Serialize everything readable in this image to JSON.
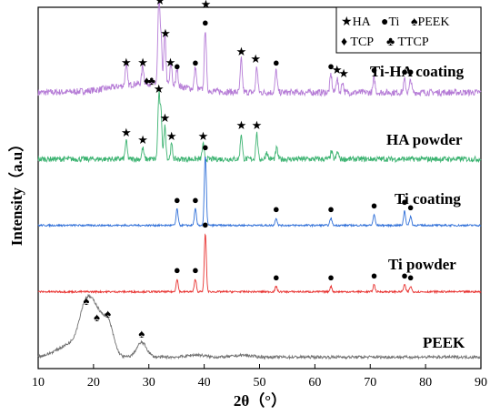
{
  "chart_data": {
    "type": "line",
    "xlabel": "2θ（°）",
    "ylabel": "Intensity（a.u）",
    "xlim": [
      10,
      90
    ],
    "x_ticks": [
      10,
      20,
      30,
      40,
      50,
      60,
      70,
      80,
      90
    ],
    "y_ticks": false,
    "grid": false,
    "legend": {
      "placement": "top-right",
      "entries": [
        {
          "symbol": "★",
          "label": "HA"
        },
        {
          "symbol": "●",
          "label": "Ti"
        },
        {
          "symbol": "♠",
          "label": "PEEK"
        },
        {
          "symbol": "♦",
          "label": "TCP"
        },
        {
          "symbol": "♣",
          "label": "TTCP"
        }
      ]
    },
    "series": [
      {
        "name": "Ti-HA coating",
        "color": "#b57bd6",
        "baseline": 1.0,
        "noise": 0.18,
        "peaks": [
          {
            "x": 25.9,
            "h": 0.6
          },
          {
            "x": 28.9,
            "h": 0.5
          },
          {
            "x": 31.8,
            "h": 2.3
          },
          {
            "x": 32.2,
            "h": 1.2
          },
          {
            "x": 32.9,
            "h": 1.4
          },
          {
            "x": 34.0,
            "h": 0.6
          },
          {
            "x": 35.1,
            "h": 0.5
          },
          {
            "x": 38.4,
            "h": 0.6
          },
          {
            "x": 40.2,
            "h": 1.7
          },
          {
            "x": 46.7,
            "h": 0.9
          },
          {
            "x": 49.5,
            "h": 0.7
          },
          {
            "x": 53.0,
            "h": 0.6
          },
          {
            "x": 62.9,
            "h": 0.5
          },
          {
            "x": 64.0,
            "h": 0.4
          },
          {
            "x": 65.0,
            "h": 0.3
          },
          {
            "x": 70.7,
            "h": 0.4
          },
          {
            "x": 76.2,
            "h": 0.35
          },
          {
            "x": 77.3,
            "h": 0.35
          }
        ],
        "markers": [
          {
            "x": 25.9,
            "h": 0.6,
            "s": "★"
          },
          {
            "x": 28.9,
            "h": 0.6,
            "s": "★"
          },
          {
            "x": 29.6,
            "h": 0.1,
            "s": "♦"
          },
          {
            "x": 30.5,
            "h": 0.1,
            "s": "♣"
          },
          {
            "x": 32.0,
            "h": 2.3,
            "s": "★"
          },
          {
            "x": 33.0,
            "h": 1.4,
            "s": "★"
          },
          {
            "x": 33.9,
            "h": 0.6,
            "s": "★"
          },
          {
            "x": 35.1,
            "h": 0.5,
            "s": "●"
          },
          {
            "x": 38.4,
            "h": 0.6,
            "s": "●"
          },
          {
            "x": 40.2,
            "h": 1.7,
            "s": "●"
          },
          {
            "x": 40.3,
            "h": 2.2,
            "s": "★"
          },
          {
            "x": 46.7,
            "h": 0.9,
            "s": "★"
          },
          {
            "x": 49.3,
            "h": 0.7,
            "s": "★"
          },
          {
            "x": 53.0,
            "h": 0.6,
            "s": "●"
          },
          {
            "x": 62.9,
            "h": 0.5,
            "s": "●"
          },
          {
            "x": 64.0,
            "h": 0.4,
            "s": "★"
          },
          {
            "x": 65.2,
            "h": 0.3,
            "s": "★"
          },
          {
            "x": 70.7,
            "h": 0.4,
            "s": "●"
          },
          {
            "x": 76.2,
            "h": 0.35,
            "s": "●"
          },
          {
            "x": 77.3,
            "h": 0.35,
            "s": "●"
          }
        ]
      },
      {
        "name": "HA powder",
        "color": "#3cb371",
        "baseline": 0.15,
        "noise": 0.15,
        "peaks": [
          {
            "x": 25.9,
            "h": 0.5
          },
          {
            "x": 28.9,
            "h": 0.3
          },
          {
            "x": 31.8,
            "h": 1.7
          },
          {
            "x": 32.2,
            "h": 1.2
          },
          {
            "x": 32.9,
            "h": 0.9
          },
          {
            "x": 34.1,
            "h": 0.4
          },
          {
            "x": 39.8,
            "h": 0.4
          },
          {
            "x": 46.7,
            "h": 0.7
          },
          {
            "x": 49.5,
            "h": 0.7
          },
          {
            "x": 51.3,
            "h": 0.2
          },
          {
            "x": 53.1,
            "h": 0.3
          },
          {
            "x": 63.0,
            "h": 0.2
          },
          {
            "x": 64.1,
            "h": 0.2
          }
        ],
        "markers": [
          {
            "x": 25.9,
            "h": 0.5,
            "s": "★"
          },
          {
            "x": 28.9,
            "h": 0.3,
            "s": "★"
          },
          {
            "x": 31.8,
            "h": 1.7,
            "s": "★"
          },
          {
            "x": 32.9,
            "h": 0.9,
            "s": "★"
          },
          {
            "x": 34.1,
            "h": 0.4,
            "s": "★"
          },
          {
            "x": 39.8,
            "h": 0.4,
            "s": "★"
          },
          {
            "x": 46.7,
            "h": 0.7,
            "s": "★"
          },
          {
            "x": 49.5,
            "h": 0.7,
            "s": "★"
          }
        ]
      },
      {
        "name": "Ti coating",
        "color": "#2f6fd8",
        "baseline": 0.05,
        "noise": 0.05,
        "peaks": [
          {
            "x": 35.1,
            "h": 0.45
          },
          {
            "x": 38.4,
            "h": 0.45
          },
          {
            "x": 40.2,
            "h": 1.9
          },
          {
            "x": 53.0,
            "h": 0.2
          },
          {
            "x": 62.9,
            "h": 0.2
          },
          {
            "x": 70.7,
            "h": 0.3
          },
          {
            "x": 76.2,
            "h": 0.4
          },
          {
            "x": 77.3,
            "h": 0.25
          }
        ],
        "markers": [
          {
            "x": 35.1,
            "h": 0.45,
            "s": "●"
          },
          {
            "x": 38.4,
            "h": 0.45,
            "s": "●"
          },
          {
            "x": 40.2,
            "h": 1.9,
            "s": "●"
          },
          {
            "x": 53.0,
            "h": 0.2,
            "s": "●"
          },
          {
            "x": 62.9,
            "h": 0.2,
            "s": "●"
          },
          {
            "x": 70.7,
            "h": 0.3,
            "s": "●"
          },
          {
            "x": 76.2,
            "h": 0.4,
            "s": "●"
          },
          {
            "x": 77.3,
            "h": 0.25,
            "s": "●"
          }
        ]
      },
      {
        "name": "Ti powder",
        "color": "#e8312f",
        "baseline": 0.05,
        "noise": 0.05,
        "peaks": [
          {
            "x": 35.1,
            "h": 0.35
          },
          {
            "x": 38.4,
            "h": 0.35
          },
          {
            "x": 40.2,
            "h": 1.6
          },
          {
            "x": 53.0,
            "h": 0.15
          },
          {
            "x": 62.9,
            "h": 0.15
          },
          {
            "x": 70.7,
            "h": 0.2
          },
          {
            "x": 76.2,
            "h": 0.2
          },
          {
            "x": 77.3,
            "h": 0.15
          }
        ],
        "markers": [
          {
            "x": 35.1,
            "h": 0.35,
            "s": "●"
          },
          {
            "x": 38.4,
            "h": 0.35,
            "s": "●"
          },
          {
            "x": 40.2,
            "h": 1.6,
            "s": "●"
          },
          {
            "x": 53.0,
            "h": 0.15,
            "s": "●"
          },
          {
            "x": 62.9,
            "h": 0.15,
            "s": "●"
          },
          {
            "x": 70.7,
            "h": 0.2,
            "s": "●"
          },
          {
            "x": 76.2,
            "h": 0.2,
            "s": "●"
          },
          {
            "x": 77.3,
            "h": 0.15,
            "s": "●"
          }
        ]
      },
      {
        "name": "PEEK",
        "color": "#707070",
        "baseline": 0.05,
        "noise": 0.08,
        "peaks": [
          {
            "x": 18.7,
            "h": 1.3,
            "w": 1.2
          },
          {
            "x": 20.6,
            "h": 0.85,
            "w": 1.0
          },
          {
            "x": 22.6,
            "h": 0.95,
            "w": 1.0
          },
          {
            "x": 28.7,
            "h": 0.4,
            "w": 0.9
          },
          {
            "x": 16.0,
            "h": 0.35,
            "w": 2.5
          },
          {
            "x": 38.5,
            "h": 0.06,
            "w": 1.5
          },
          {
            "x": 47.0,
            "h": 0.05,
            "w": 1.5
          }
        ],
        "markers": [
          {
            "x": 18.7,
            "h": 1.3,
            "s": "♠"
          },
          {
            "x": 20.6,
            "h": 0.85,
            "s": "♠"
          },
          {
            "x": 22.6,
            "h": 0.95,
            "s": "♠"
          },
          {
            "x": 28.7,
            "h": 0.4,
            "s": "♠"
          }
        ]
      }
    ]
  }
}
